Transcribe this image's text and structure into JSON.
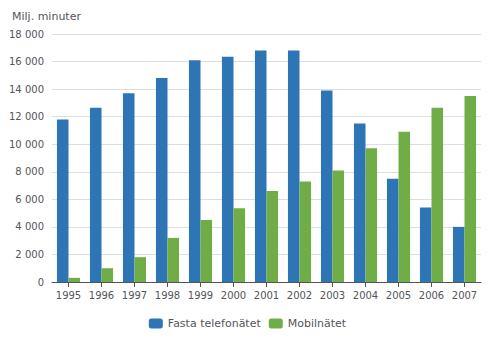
{
  "chart_data": {
    "type": "bar",
    "ylabel": "Milj. minuter",
    "categories": [
      "1995",
      "1996",
      "1997",
      "1998",
      "1999",
      "2000",
      "2001",
      "2002",
      "2003",
      "2004",
      "2005",
      "2006",
      "2007"
    ],
    "series": [
      {
        "name": "Fasta telefonätet",
        "color": "#2E75B6",
        "values": [
          11800,
          12650,
          13700,
          14800,
          16100,
          16350,
          16800,
          16800,
          13900,
          11500,
          7500,
          5400,
          4000
        ]
      },
      {
        "name": "Mobilnätet",
        "color": "#70AD47",
        "values": [
          300,
          1000,
          1800,
          3200,
          4500,
          5350,
          6600,
          7300,
          8100,
          9700,
          10900,
          12650,
          13500
        ]
      }
    ],
    "ylim": [
      0,
      18000
    ],
    "yticks": [
      0,
      {
        "value": 2000,
        "label": "2 000"
      },
      {
        "value": 4000,
        "label": "4 000"
      },
      {
        "value": 6000,
        "label": "6 000"
      },
      {
        "value": 8000,
        "label": "8 000"
      },
      {
        "value": 10000,
        "label": "10 000"
      },
      {
        "value": 12000,
        "label": "12 000"
      },
      {
        "value": 14000,
        "label": "14 000"
      },
      {
        "value": 16000,
        "label": "16 000"
      },
      {
        "value": 18000,
        "label": "18 000"
      }
    ],
    "grid": true,
    "legend": "bottom"
  }
}
